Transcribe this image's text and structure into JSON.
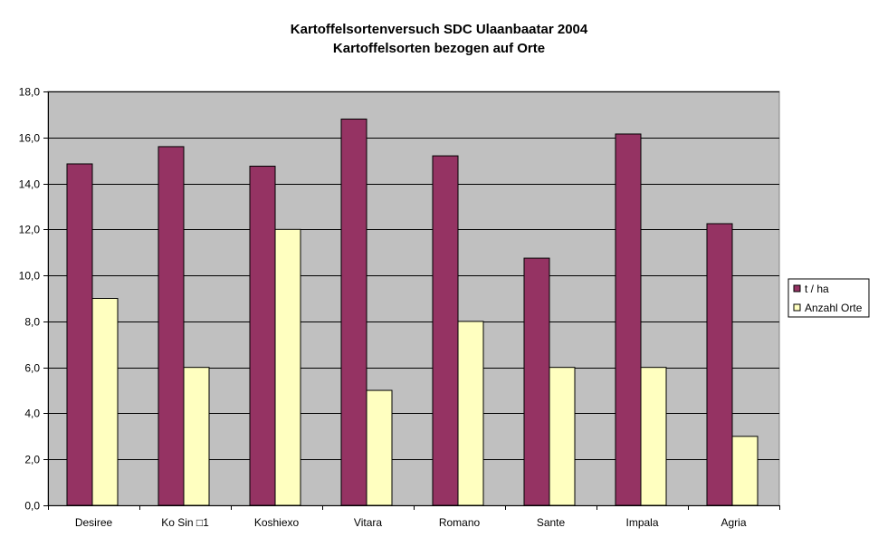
{
  "chart_data": {
    "type": "bar",
    "title": "Kartoffelsortenversuch SDC Ulaanbaatar 2004",
    "subtitle": "Kartoffelsorten bezogen auf Orte",
    "categories": [
      "Desiree",
      "Ko Sin □1",
      "Koshiexo",
      "Vitara",
      "Romano",
      "Sante",
      "Impala",
      "Agria"
    ],
    "series": [
      {
        "name": "t / ha",
        "color": "#953363",
        "values": [
          14.85,
          15.6,
          14.75,
          16.8,
          15.2,
          10.75,
          16.15,
          12.25
        ]
      },
      {
        "name": "Anzahl Orte",
        "color": "#ffffc0",
        "values": [
          9,
          6,
          12,
          5,
          8,
          6,
          6,
          3
        ]
      }
    ],
    "ylim": [
      0,
      18
    ],
    "yticks": [
      "0,0",
      "2,0",
      "4,0",
      "6,0",
      "8,0",
      "10,0",
      "12,0",
      "14,0",
      "16,0",
      "18,0"
    ],
    "grid": true,
    "plot_background": "#c0c0c0",
    "legend_position": "right"
  }
}
